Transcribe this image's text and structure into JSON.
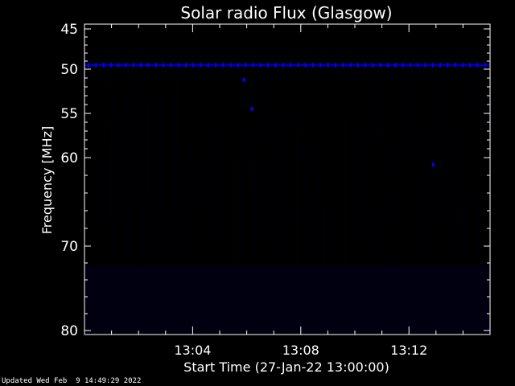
{
  "chart_data": {
    "type": "heatmap",
    "title": "Solar radio Flux (Glasgow)",
    "xlabel": "Start Time (27-Jan-22 13:00:00)",
    "ylabel": "Frequency [MHz]",
    "x_unit": "minutes after 13:00",
    "xlim": [
      0,
      15
    ],
    "ylim": [
      45,
      80
    ],
    "y_reversed": true,
    "x_ticks": [
      {
        "value": 4,
        "label": "13:04"
      },
      {
        "value": 8,
        "label": "13:08"
      },
      {
        "value": 12,
        "label": "13:12"
      }
    ],
    "y_ticks": [
      {
        "value": 45,
        "label": "45"
      },
      {
        "value": 50,
        "label": "50"
      },
      {
        "value": 55,
        "label": "55"
      },
      {
        "value": 60,
        "label": "60"
      },
      {
        "value": 70,
        "label": "70"
      },
      {
        "value": 80,
        "label": "80"
      }
    ],
    "features": [
      {
        "kind": "interference-line",
        "frequency_mhz": 49.5,
        "x_start": 0,
        "x_end": 15
      },
      {
        "kind": "spot",
        "x": 6.2,
        "frequency_mhz": 54.5
      },
      {
        "kind": "spot",
        "x": 5.9,
        "frequency_mhz": 51.2
      },
      {
        "kind": "spot",
        "x": 12.9,
        "frequency_mhz": 60.8
      }
    ],
    "background_color": "#000000",
    "signal_color": "#0000ff"
  },
  "footer": {
    "updated": "Updated Wed Feb  9 14:49:29 2022"
  }
}
